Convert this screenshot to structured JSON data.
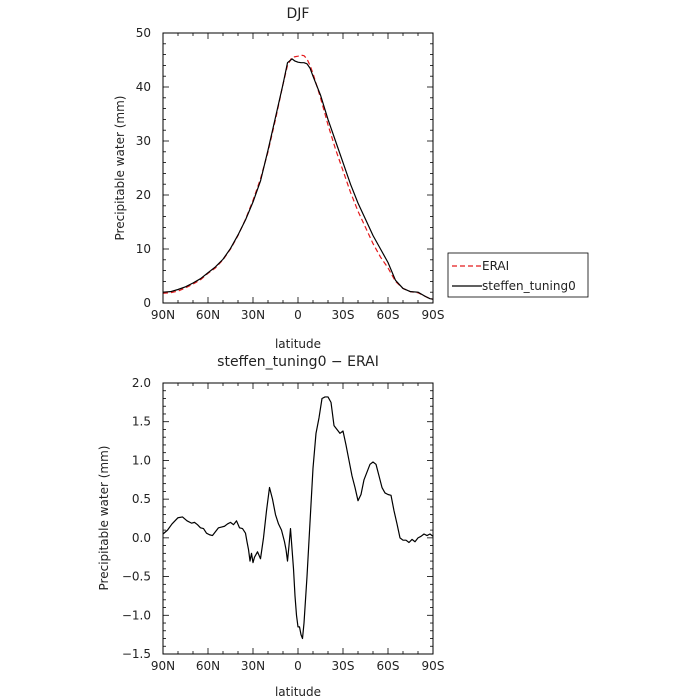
{
  "chart_data": [
    {
      "type": "line",
      "title": "DJF",
      "xlabel": "latitude",
      "ylabel": "Precipitable water (mm)",
      "xlim": [
        90,
        -90
      ],
      "ylim": [
        0,
        50
      ],
      "x_ticks": [
        90,
        60,
        30,
        0,
        -30,
        -60,
        -90
      ],
      "x_tick_labels": [
        "90N",
        "60N",
        "30N",
        "0",
        "30S",
        "60S",
        "90S"
      ],
      "y_ticks": [
        0,
        10,
        20,
        30,
        40,
        50
      ],
      "y_tick_labels": [
        "0",
        "10",
        "20",
        "30",
        "40",
        "50"
      ],
      "legend_position": "right",
      "series": [
        {
          "name": "ERAI",
          "color": "#e41a1c",
          "dash": "dashed",
          "x": [
            90,
            85,
            80,
            75,
            70,
            65,
            60,
            55,
            50,
            45,
            40,
            35,
            30,
            25,
            20,
            15,
            10,
            7,
            4,
            2,
            0,
            -2,
            -4,
            -6,
            -8,
            -10,
            -15,
            -20,
            -25,
            -30,
            -35,
            -40,
            -45,
            -50,
            -55,
            -60,
            -65,
            -70,
            -75,
            -80,
            -85,
            -88,
            -90
          ],
          "y": [
            1.8,
            1.9,
            2.2,
            2.8,
            3.5,
            4.3,
            5.5,
            6.5,
            8.0,
            10.0,
            12.5,
            15.5,
            19.0,
            23.0,
            28.0,
            34.0,
            40.5,
            44.0,
            45.5,
            45.6,
            45.7,
            45.9,
            45.8,
            45.2,
            44.0,
            42.5,
            38.0,
            33.0,
            28.5,
            24.5,
            20.5,
            17.0,
            14.0,
            11.0,
            8.5,
            6.5,
            4.0,
            2.7,
            2.1,
            1.9,
            1.2,
            0.8,
            0.7
          ]
        },
        {
          "name": "steffen_tuning0",
          "color": "#000000",
          "dash": "solid",
          "x": [
            90,
            85,
            80,
            75,
            70,
            65,
            60,
            55,
            50,
            45,
            40,
            35,
            30,
            25,
            20,
            15,
            10,
            7,
            4,
            2,
            0,
            -2,
            -4,
            -6,
            -8,
            -10,
            -15,
            -20,
            -25,
            -30,
            -35,
            -40,
            -45,
            -50,
            -55,
            -60,
            -65,
            -70,
            -75,
            -80,
            -85,
            -88,
            -90
          ],
          "y": [
            2.0,
            2.1,
            2.5,
            3.0,
            3.7,
            4.5,
            5.6,
            6.7,
            8.1,
            10.1,
            12.6,
            15.4,
            18.7,
            22.6,
            28.3,
            34.4,
            40.5,
            44.5,
            45.2,
            44.8,
            44.6,
            44.5,
            44.5,
            44.3,
            43.5,
            42.0,
            38.5,
            34.0,
            30.0,
            26.0,
            22.0,
            18.5,
            15.5,
            12.5,
            10.0,
            7.5,
            4.2,
            2.7,
            2.1,
            2.0,
            1.2,
            0.8,
            0.7
          ]
        }
      ]
    },
    {
      "type": "line",
      "title": "steffen_tuning0 − ERAI",
      "xlabel": "latitude",
      "ylabel": "Precipitable water (mm)",
      "xlim": [
        90,
        -90
      ],
      "ylim": [
        -1.5,
        2.0
      ],
      "x_ticks": [
        90,
        60,
        30,
        0,
        -30,
        -60,
        -90
      ],
      "x_tick_labels": [
        "90N",
        "60N",
        "30N",
        "0",
        "30S",
        "60S",
        "90S"
      ],
      "y_ticks": [
        -1.5,
        -1.0,
        -0.5,
        0.0,
        0.5,
        1.0,
        1.5,
        2.0
      ],
      "y_tick_labels": [
        "−1.5",
        "−1.0",
        "−0.5",
        "0.0",
        "0.5",
        "1.0",
        "1.5",
        "2.0"
      ],
      "series": [
        {
          "name": "",
          "color": "#000000",
          "dash": "solid",
          "x": [
            90,
            87,
            84,
            80,
            77,
            74,
            71,
            69,
            67,
            65,
            63,
            61,
            59,
            57,
            55,
            53,
            51,
            49,
            47,
            45,
            43,
            41,
            39,
            37,
            35,
            34,
            33,
            32,
            31,
            30,
            29,
            27,
            25,
            23,
            21,
            19,
            17,
            15,
            13,
            11,
            9,
            8,
            7,
            6,
            5,
            3,
            2,
            1,
            0,
            -1,
            -2,
            -3,
            -4,
            -6,
            -8,
            -10,
            -12,
            -14,
            -16,
            -18,
            -20,
            -22,
            -24,
            -26,
            -28,
            -30,
            -32,
            -34,
            -36,
            -38,
            -40,
            -42,
            -44,
            -46,
            -48,
            -50,
            -52,
            -54,
            -56,
            -58,
            -60,
            -62,
            -64,
            -66,
            -68,
            -70,
            -72,
            -74,
            -76,
            -78,
            -80,
            -82,
            -84,
            -86,
            -88,
            -90
          ],
          "y": [
            0.05,
            0.1,
            0.18,
            0.26,
            0.27,
            0.22,
            0.19,
            0.2,
            0.17,
            0.13,
            0.12,
            0.06,
            0.04,
            0.03,
            0.08,
            0.13,
            0.14,
            0.15,
            0.18,
            0.2,
            0.17,
            0.22,
            0.13,
            0.12,
            0.06,
            -0.05,
            -0.15,
            -0.3,
            -0.2,
            -0.32,
            -0.25,
            -0.18,
            -0.27,
            0.0,
            0.35,
            0.65,
            0.5,
            0.3,
            0.18,
            0.1,
            -0.05,
            -0.15,
            -0.3,
            -0.1,
            0.12,
            -0.4,
            -0.75,
            -1.0,
            -1.15,
            -1.15,
            -1.25,
            -1.3,
            -1.1,
            -0.5,
            0.2,
            0.9,
            1.35,
            1.55,
            1.8,
            1.82,
            1.82,
            1.75,
            1.45,
            1.4,
            1.35,
            1.38,
            1.2,
            1.0,
            0.8,
            0.65,
            0.48,
            0.56,
            0.75,
            0.85,
            0.95,
            0.98,
            0.95,
            0.8,
            0.65,
            0.58,
            0.56,
            0.55,
            0.35,
            0.18,
            0.0,
            -0.03,
            -0.03,
            -0.06,
            -0.02,
            -0.05,
            0.0,
            0.02,
            0.05,
            0.03,
            0.05,
            0.02
          ]
        }
      ]
    }
  ]
}
